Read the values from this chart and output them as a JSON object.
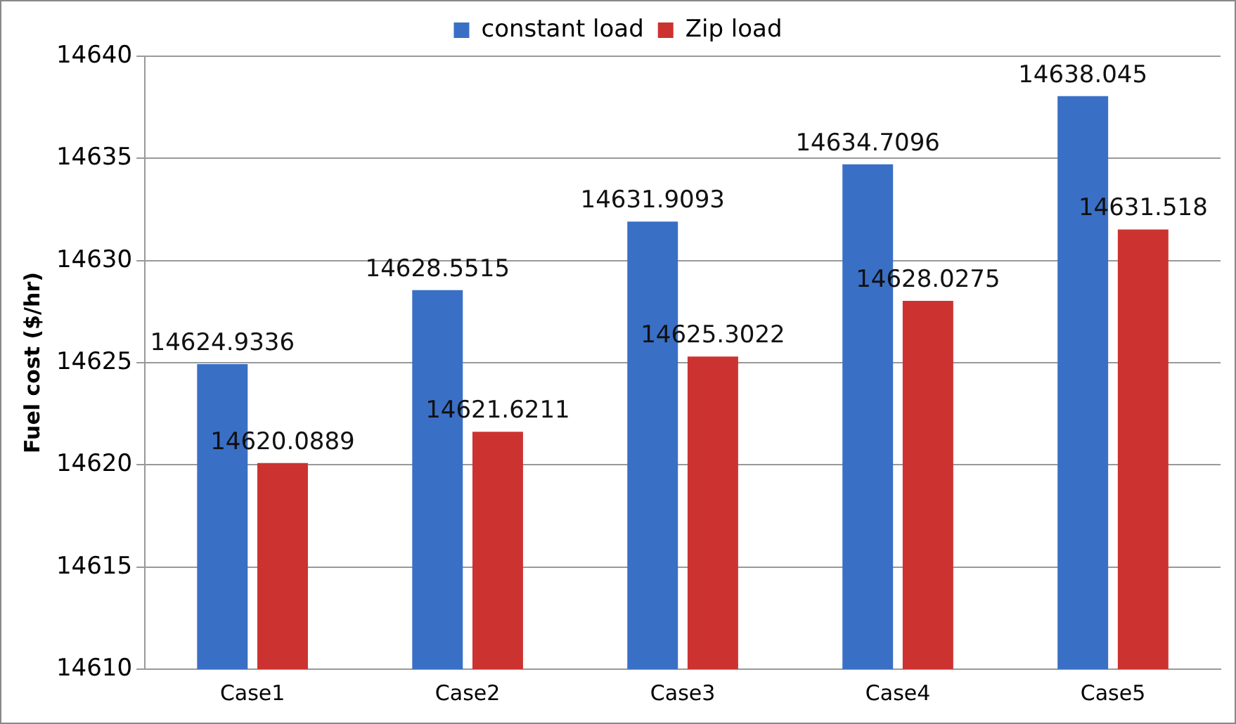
{
  "chart_data": {
    "type": "bar",
    "ylabel": "Fuel cost ($/hr)",
    "categories": [
      "Case1",
      "Case2",
      "Case3",
      "Case4",
      "Case5"
    ],
    "series": [
      {
        "name": "constant load",
        "color": "#3a6fc6",
        "values": [
          14624.9336,
          14628.5515,
          14631.9093,
          14634.7096,
          14638.045
        ]
      },
      {
        "name": "Zip load",
        "color": "#cc3330",
        "values": [
          14620.0889,
          14621.6211,
          14625.3022,
          14628.0275,
          14631.518
        ]
      }
    ],
    "ylim": [
      14610,
      14640
    ],
    "yticks": [
      14610,
      14615,
      14620,
      14625,
      14630,
      14635,
      14640
    ],
    "grid": "y",
    "legend": "top",
    "data_labels": true
  }
}
